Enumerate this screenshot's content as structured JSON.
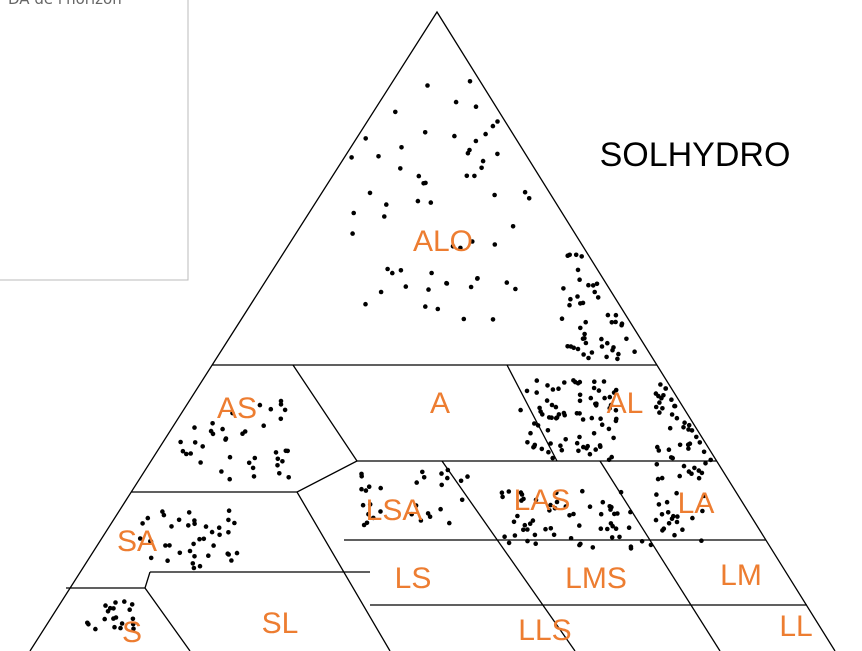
{
  "legend_box": {
    "text": "DA de l'horizon"
  },
  "title": "SOLHYDRO",
  "zones": [
    "ALO",
    "A",
    "AL",
    "AS",
    "LSA",
    "LAS",
    "LA",
    "SA",
    "LS",
    "LMS",
    "LM",
    "S",
    "SL",
    "LLS",
    "LL"
  ]
}
